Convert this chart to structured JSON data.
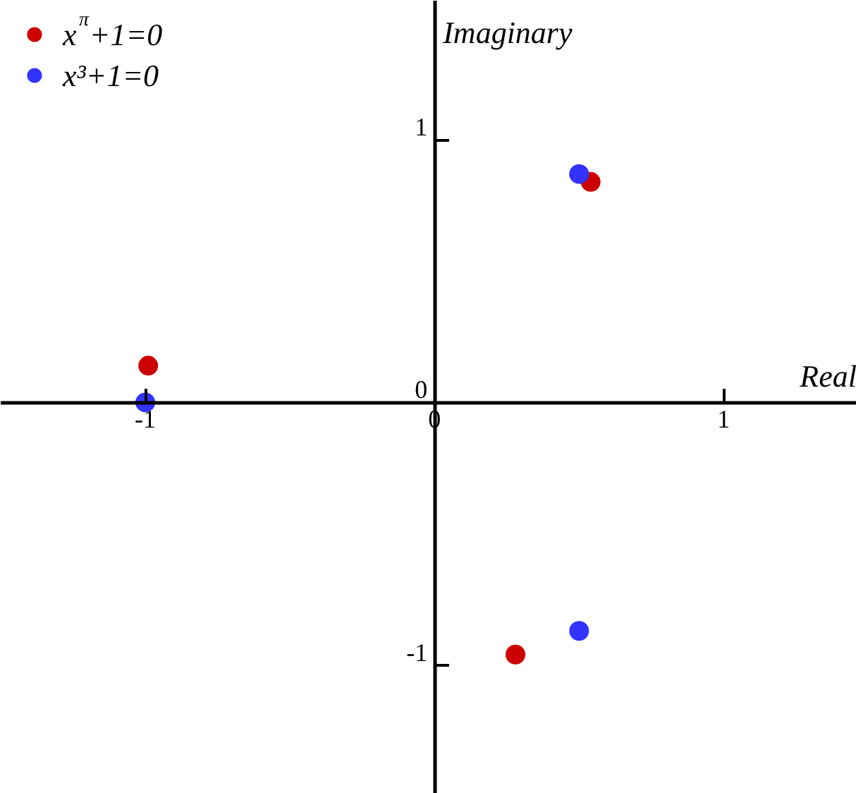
{
  "chart_data": {
    "type": "scatter",
    "xlabel": "Real",
    "ylabel": "Imaginary",
    "xlim": [
      -1.5,
      1.46
    ],
    "ylim": [
      -1.49,
      1.53
    ],
    "xticks": [
      -1,
      0,
      1
    ],
    "yticks": [
      -1,
      0,
      1
    ],
    "marker": "circle",
    "legend": "top left",
    "grid": false,
    "series": [
      {
        "name": "x$^{π}$+1=0",
        "color": "#cc0000",
        "x": [
          0.54,
          -0.99,
          0.28
        ],
        "values": [
          0.84,
          0.14,
          -0.96
        ]
      },
      {
        "name": "x³+1=0",
        "color": "#3333ff",
        "x": [
          -1,
          0.5,
          0.5
        ],
        "values": [
          0,
          0.87,
          -0.87
        ]
      }
    ]
  }
}
